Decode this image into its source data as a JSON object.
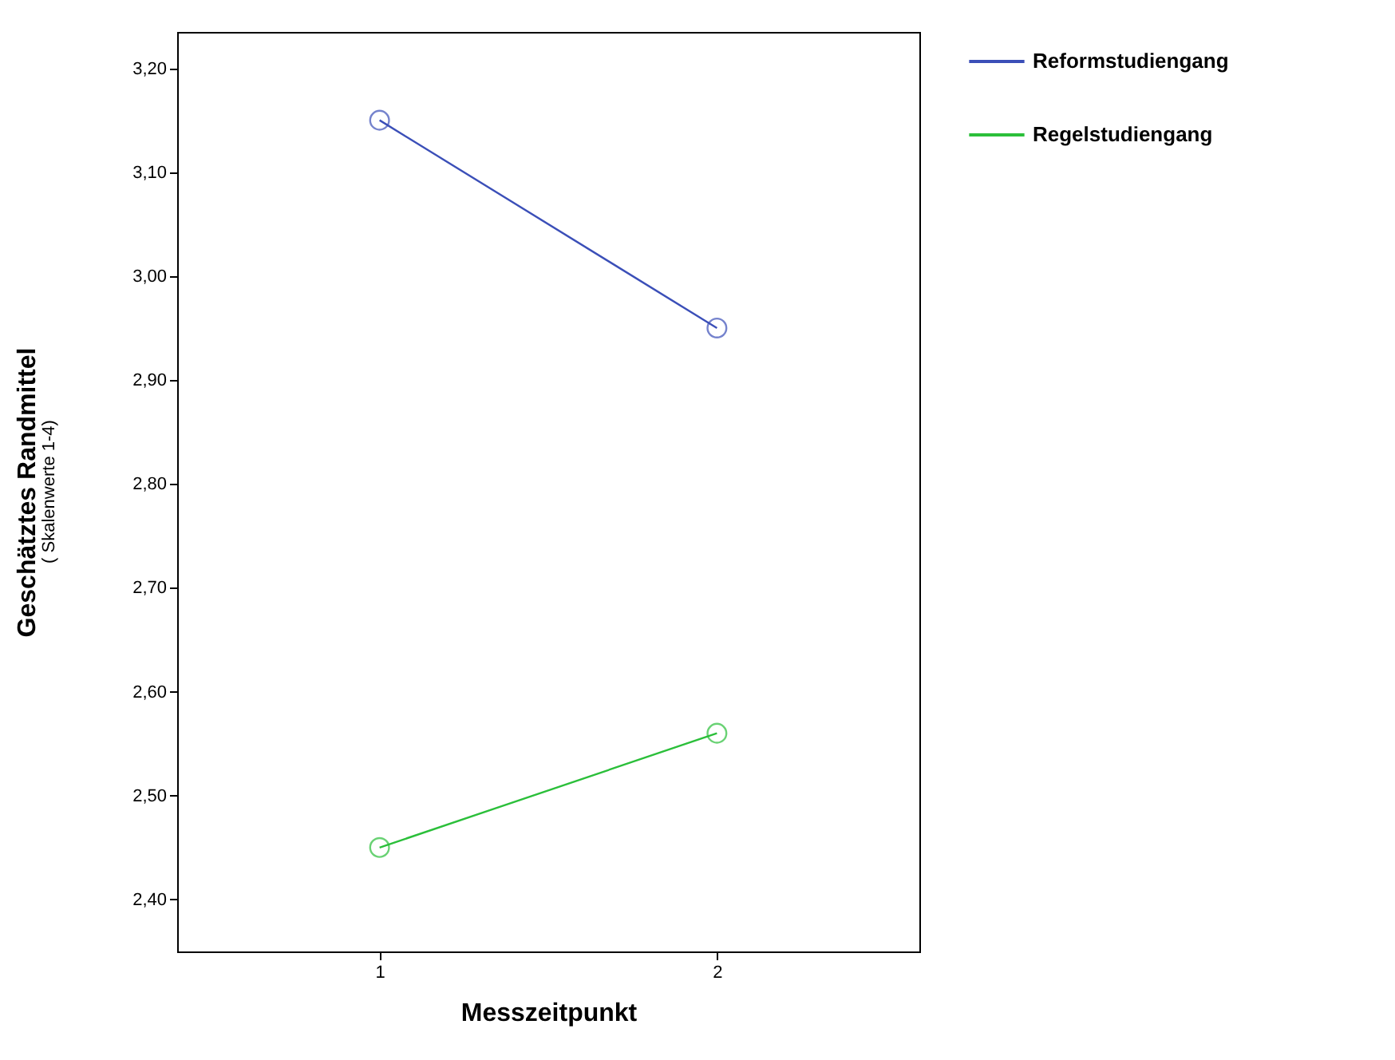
{
  "chart_data": {
    "type": "line",
    "xlabel": "Messzeitpunkt",
    "ylabel": "Geschätztes Randmittel",
    "annotations": [
      "( Skalenwerte 1-4)"
    ],
    "x": [
      1,
      2
    ],
    "xlim": [
      0.4,
      2.6
    ],
    "xticks": [
      1,
      2
    ],
    "ylim": [
      2.35,
      3.235
    ],
    "yticks": [
      {
        "value": 2.4,
        "label": "2,40"
      },
      {
        "value": 2.5,
        "label": "2,50"
      },
      {
        "value": 2.6,
        "label": "2,60"
      },
      {
        "value": 2.7,
        "label": "2,70"
      },
      {
        "value": 2.8,
        "label": "2,80"
      },
      {
        "value": 2.9,
        "label": "2,90"
      },
      {
        "value": 3.0,
        "label": "3,00"
      },
      {
        "value": 3.1,
        "label": "3,10"
      },
      {
        "value": 3.2,
        "label": "3,20"
      }
    ],
    "series": [
      {
        "name": "Reformstudiengang",
        "color": "#3b4fb8",
        "values": [
          3.15,
          2.95
        ]
      },
      {
        "name": "Regelstudiengang",
        "color": "#2bbf3a",
        "values": [
          2.45,
          2.56
        ]
      }
    ],
    "marker": "circle",
    "line_style": "solid",
    "grid": false,
    "legend": "top right"
  }
}
